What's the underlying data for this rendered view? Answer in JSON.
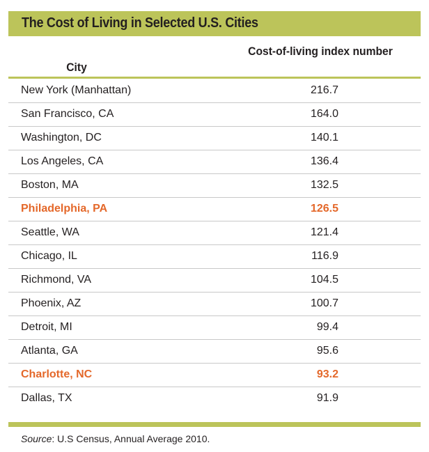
{
  "title": "The Cost of Living in Selected U.S. Cities",
  "headers": {
    "city": "City",
    "value": "Cost-of-living index number"
  },
  "rows": [
    {
      "city": "New York (Manhattan)",
      "value": "216.7",
      "highlight": false
    },
    {
      "city": "San Francisco, CA",
      "value": "164.0",
      "highlight": false
    },
    {
      "city": "Washington, DC",
      "value": "140.1",
      "highlight": false
    },
    {
      "city": "Los Angeles, CA",
      "value": "136.4",
      "highlight": false
    },
    {
      "city": "Boston, MA",
      "value": "132.5",
      "highlight": false
    },
    {
      "city": "Philadelphia, PA",
      "value": "126.5",
      "highlight": true
    },
    {
      "city": "Seattle, WA",
      "value": "121.4",
      "highlight": false
    },
    {
      "city": "Chicago, IL",
      "value": "116.9",
      "highlight": false
    },
    {
      "city": "Richmond, VA",
      "value": "104.5",
      "highlight": false
    },
    {
      "city": "Phoenix, AZ",
      "value": "100.7",
      "highlight": false
    },
    {
      "city": "Detroit, MI",
      "value": "99.4",
      "highlight": false
    },
    {
      "city": "Atlanta, GA",
      "value": "95.6",
      "highlight": false
    },
    {
      "city": "Charlotte, NC",
      "value": "93.2",
      "highlight": true
    },
    {
      "city": "Dallas, TX",
      "value": "91.9",
      "highlight": false
    }
  ],
  "source": {
    "label": "Source",
    "text": ": U.S Census, Annual Average 2010."
  },
  "colors": {
    "band": "#bcc45a",
    "highlight": "#e4682a"
  }
}
